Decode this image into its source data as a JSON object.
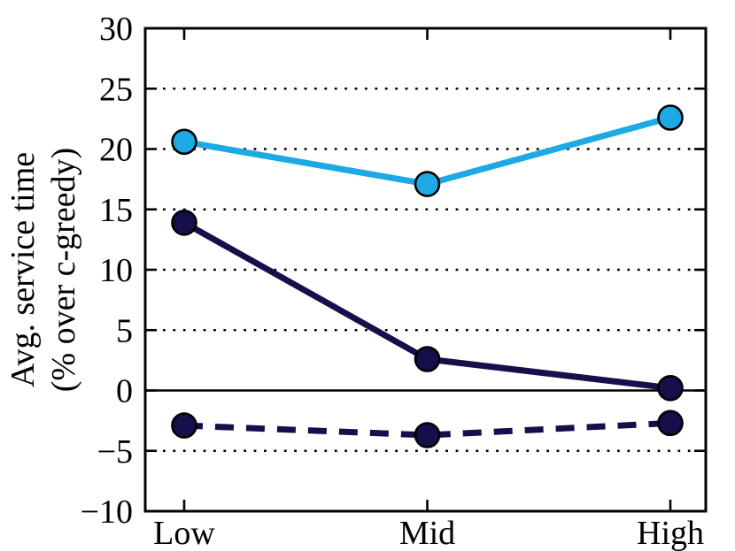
{
  "chart_data": {
    "type": "line",
    "title": "",
    "categories": [
      "Low",
      "Mid",
      "High"
    ],
    "series": [
      {
        "name": "light-blue-solid",
        "values": [
          20.6,
          17.1,
          22.6
        ],
        "color": "#1ca9e4",
        "line_style": "solid",
        "marker": "circle",
        "marker_edge_color": "#000000"
      },
      {
        "name": "navy-solid",
        "values": [
          13.9,
          2.6,
          0.2
        ],
        "color": "#15104b",
        "line_style": "solid",
        "marker": "circle",
        "marker_edge_color": "#000000"
      },
      {
        "name": "navy-dashed",
        "values": [
          -2.9,
          -3.7,
          -2.7
        ],
        "color": "#15104b",
        "line_style": "dashed",
        "marker": "circle",
        "marker_edge_color": "#000000"
      }
    ],
    "xlabel": "",
    "ylabel_line1": "Avg. service time",
    "ylabel_line2": "(% over c-greedy)",
    "ylim": [
      -10,
      30
    ],
    "yticks": [
      30,
      25,
      20,
      15,
      10,
      5,
      0,
      -5,
      -10
    ],
    "xtick_labels": [
      "Low",
      "Mid",
      "High"
    ],
    "grid": "horizontal dotted lines at each y tick; solid black line at y=0",
    "legend_position": "none",
    "axis_color": "#000000",
    "background_color": "#ffffff"
  }
}
